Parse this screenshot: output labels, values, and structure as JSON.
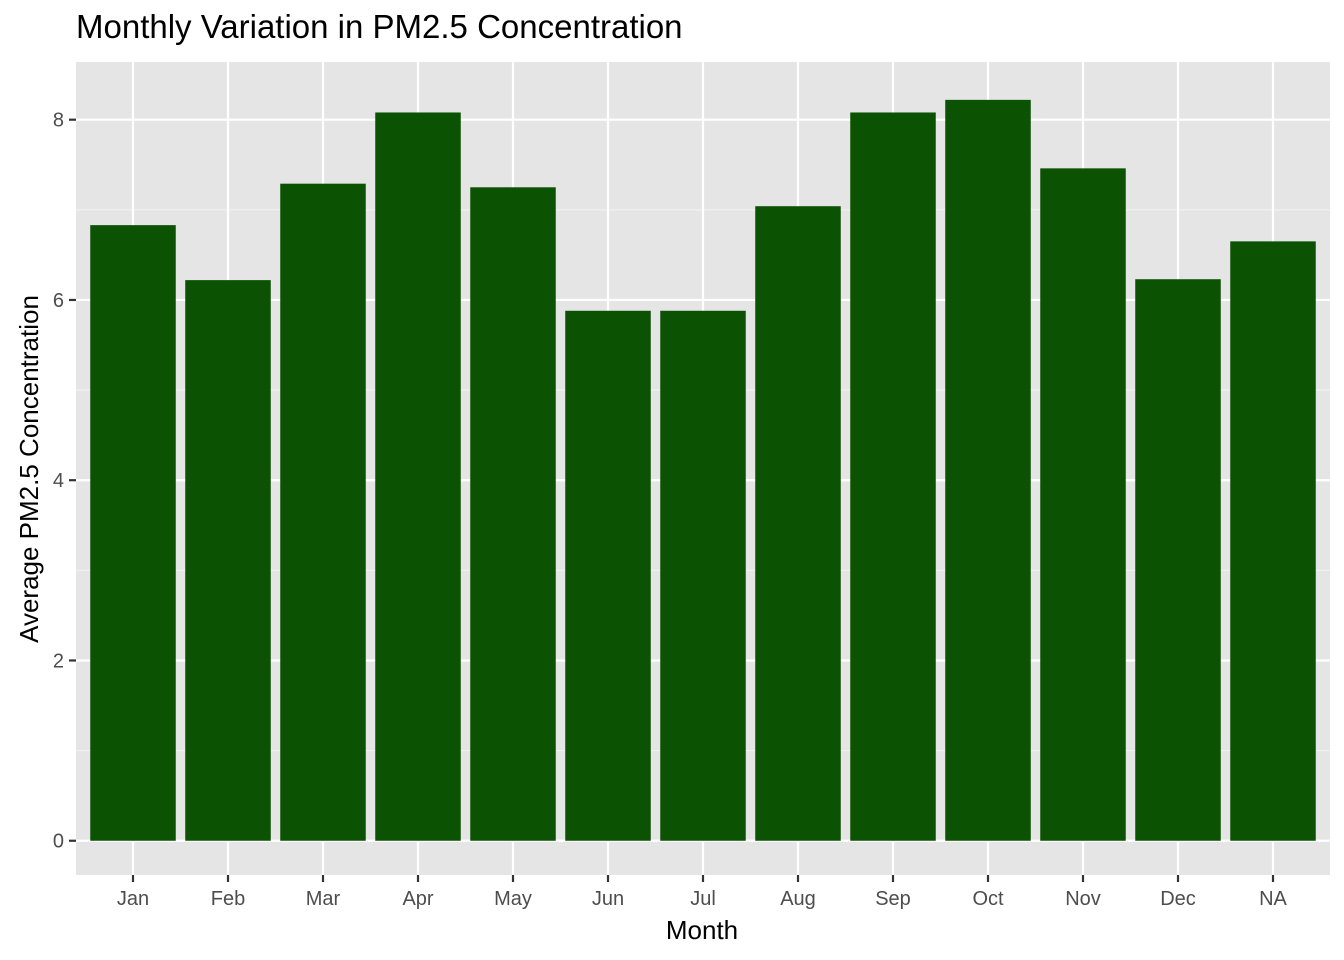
{
  "chart_data": {
    "type": "bar",
    "title": "Monthly Variation in PM2.5 Concentration",
    "xlabel": "Month",
    "ylabel": "Average PM2.5 Concentration",
    "categories": [
      "Jan",
      "Feb",
      "Mar",
      "Apr",
      "May",
      "Jun",
      "Jul",
      "Aug",
      "Sep",
      "Oct",
      "Nov",
      "Dec",
      "NA"
    ],
    "values": [
      6.83,
      6.22,
      7.29,
      8.08,
      7.25,
      5.88,
      5.88,
      7.04,
      8.08,
      8.22,
      7.46,
      6.23,
      6.65
    ],
    "yticks": [
      0,
      2,
      4,
      6,
      8
    ],
    "ylim": [
      -0.38,
      8.64
    ],
    "grid": true,
    "legend": "none",
    "colors": {
      "bar": "#0b5203",
      "panel_background": "#e5e5e5",
      "grid_major": "#ffffff",
      "grid_minor": "#f2f2f2"
    }
  }
}
